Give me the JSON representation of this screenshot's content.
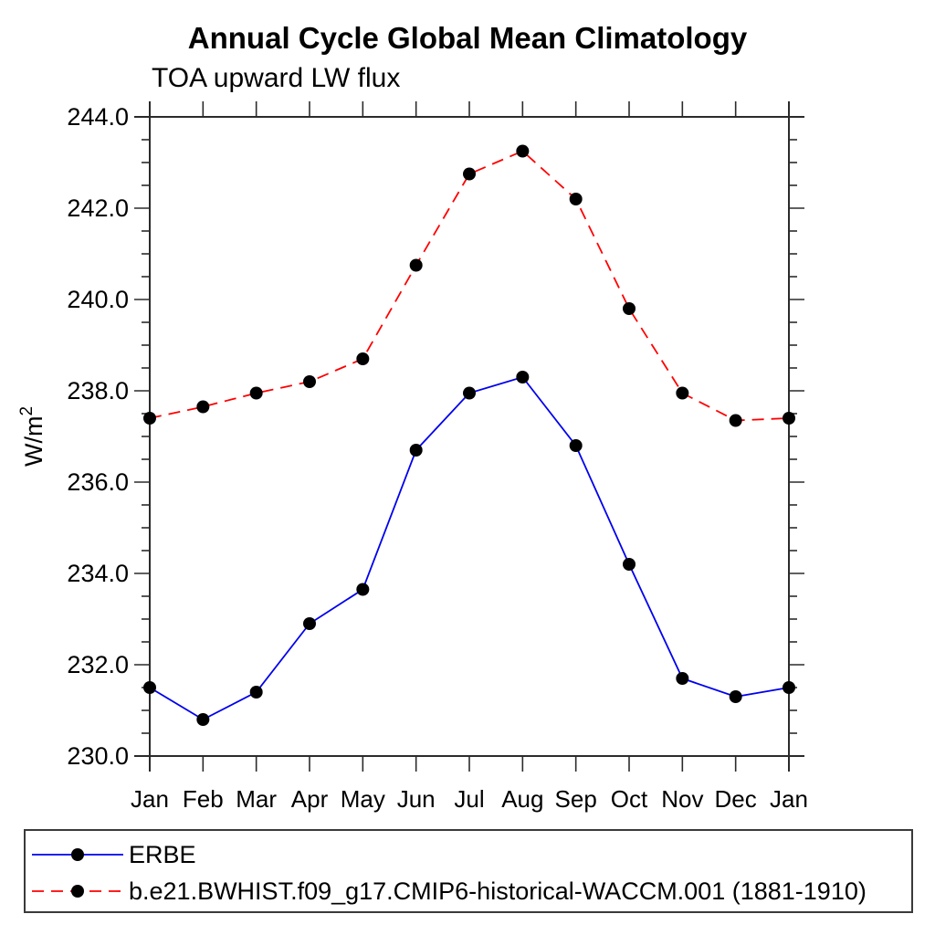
{
  "header": {
    "title": "Annual Cycle Global Mean Climatology",
    "subtitle": "TOA upward LW flux"
  },
  "chart_data": {
    "type": "line",
    "title": "Annual Cycle Global Mean Climatology",
    "subtitle": "TOA upward LW flux",
    "xlabel": "",
    "ylabel": "W/m²",
    "categories": [
      "Jan",
      "Feb",
      "Mar",
      "Apr",
      "May",
      "Jun",
      "Jul",
      "Aug",
      "Sep",
      "Oct",
      "Nov",
      "Dec",
      "Jan"
    ],
    "ylim": [
      230.0,
      244.0
    ],
    "ytick_major_step": 2.0,
    "ytick_minor_step": 0.5,
    "ytick_labels": [
      "230.0",
      "232.0",
      "234.0",
      "236.0",
      "238.0",
      "240.0",
      "242.0",
      "244.0"
    ],
    "grid": false,
    "legend_position": "bottom-left-box",
    "series": [
      {
        "name": "ERBE",
        "color": "#0000ee",
        "line_style": "solid",
        "marker": "filled-circle",
        "marker_color": "#000000",
        "values": [
          231.5,
          230.8,
          231.4,
          232.9,
          233.65,
          236.7,
          237.95,
          238.3,
          236.8,
          234.2,
          231.7,
          231.3,
          231.5
        ]
      },
      {
        "name": "b.e21.BWHIST.f09_g17.CMIP6-historical-WACCM.001 (1881-1910)",
        "color": "#ff0000",
        "line_style": "dashed",
        "marker": "filled-circle",
        "marker_color": "#000000",
        "values": [
          237.4,
          237.65,
          237.95,
          238.2,
          238.7,
          240.75,
          242.75,
          243.25,
          242.2,
          239.8,
          237.95,
          237.35,
          237.4
        ]
      }
    ],
    "axis_color": "#2b2b2b"
  }
}
